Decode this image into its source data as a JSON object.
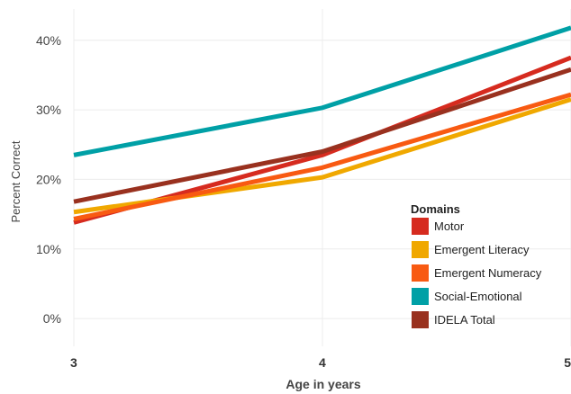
{
  "chart_data": {
    "type": "line",
    "x": [
      3,
      4,
      5
    ],
    "x_tick_labels": [
      "3",
      "4",
      "5"
    ],
    "xlabel": "Age in years",
    "ylabel": "Percent Correct",
    "y_ticks": [
      0,
      10,
      20,
      30,
      40
    ],
    "y_tick_labels": [
      "0%",
      "10%",
      "20%",
      "30%",
      "40%"
    ],
    "ylim": [
      -4,
      44.5
    ],
    "xlim": [
      3,
      5
    ],
    "grid": true,
    "legend_title": "Domains",
    "legend_position": "lower-right",
    "series": [
      {
        "name": "Motor",
        "color": "#d62b1f",
        "values": [
          13.8,
          23.5,
          37.5
        ]
      },
      {
        "name": "Emergent Literacy",
        "color": "#f0a800",
        "values": [
          15.3,
          20.3,
          31.5
        ]
      },
      {
        "name": "Emergent Numeracy",
        "color": "#f85a12",
        "values": [
          14.3,
          21.7,
          32.2
        ]
      },
      {
        "name": "Social-Emotional",
        "color": "#00a0a6",
        "values": [
          23.5,
          30.3,
          41.8
        ]
      },
      {
        "name": "IDELA Total",
        "color": "#99311f",
        "values": [
          16.8,
          24.0,
          35.8
        ]
      }
    ]
  }
}
